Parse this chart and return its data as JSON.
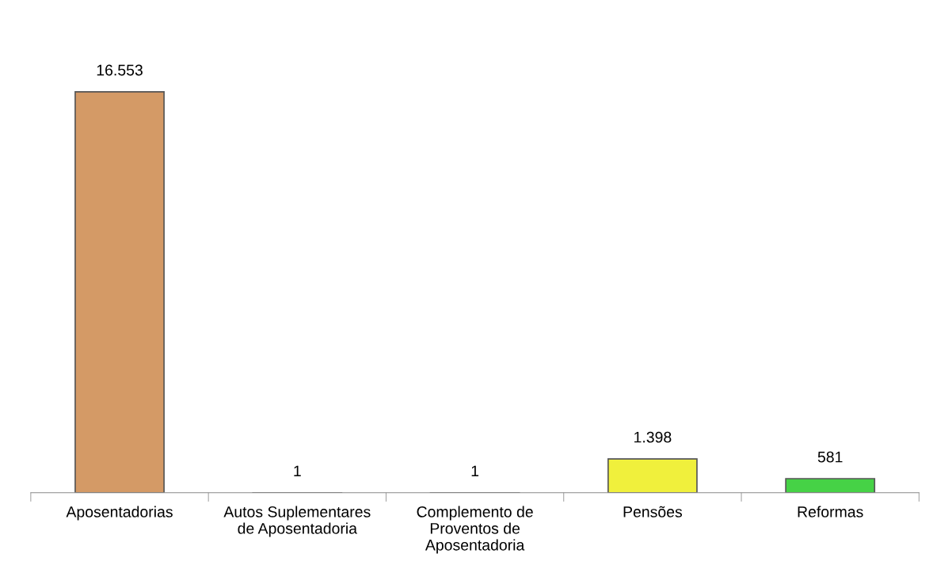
{
  "chart_data": {
    "type": "bar",
    "categories": [
      "Aposentadorias",
      "Autos Suplementares de Aposentadoria",
      "Complemento de Proventos de Aposentadoria",
      "Pensões",
      "Reformas"
    ],
    "values": [
      16553,
      1,
      1,
      1398,
      581
    ],
    "colors": [
      "#d49a66",
      "#d49a66",
      "#d49a66",
      "#f0f03c",
      "#46d246"
    ],
    "value_labels": [
      "16.553",
      "1",
      "1",
      "1.398",
      "581"
    ],
    "grid": false,
    "legend": false
  }
}
